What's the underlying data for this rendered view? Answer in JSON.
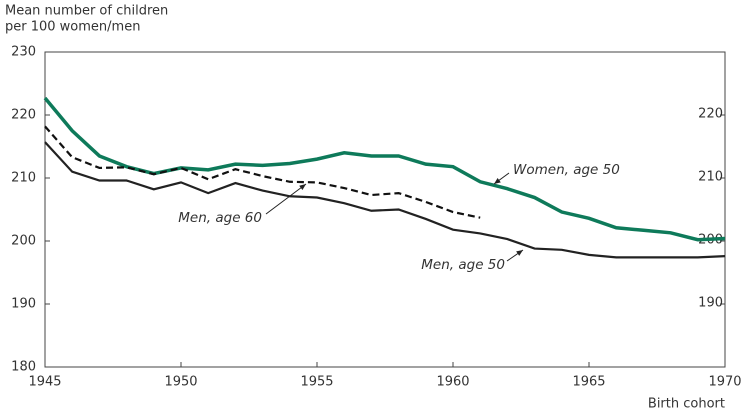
{
  "chart_data": {
    "type": "line",
    "y_label": [
      "Mean number of children",
      "per 100 women/men"
    ],
    "x_label": "Birth cohort",
    "x": [
      1945,
      1946,
      1947,
      1948,
      1949,
      1950,
      1951,
      1952,
      1953,
      1954,
      1955,
      1956,
      1957,
      1958,
      1959,
      1960,
      1961,
      1962,
      1963,
      1964,
      1965,
      1966,
      1967,
      1968,
      1969,
      1970
    ],
    "series": [
      {
        "name": "Women, age 50",
        "color": "#0e7a5a",
        "style": "solid",
        "values": [
          222.7,
          217.5,
          213.5,
          211.8,
          210.7,
          211.6,
          211.3,
          212.2,
          212.0,
          212.3,
          213.0,
          214.0,
          213.5,
          213.5,
          212.2,
          211.8,
          209.4,
          208.3,
          206.9,
          204.6,
          203.6,
          202.1,
          201.7,
          201.3,
          200.2,
          200.4
        ]
      },
      {
        "name": "Men, age 60",
        "color": "#111111",
        "style": "dashed",
        "values": [
          218.2,
          213.3,
          211.6,
          211.7,
          210.6,
          211.6,
          209.8,
          211.4,
          210.3,
          209.4,
          209.3,
          208.4,
          207.3,
          207.6,
          206.2,
          204.6,
          203.7,
          null,
          null,
          null,
          null,
          null,
          null,
          null,
          null,
          null
        ]
      },
      {
        "name": "Men, age 50",
        "color": "#222222",
        "style": "solid",
        "values": [
          215.7,
          211.0,
          209.6,
          209.6,
          208.2,
          209.3,
          207.6,
          209.2,
          208.0,
          207.1,
          206.9,
          206.0,
          204.8,
          205.0,
          203.5,
          201.8,
          201.2,
          200.3,
          198.8,
          198.6,
          197.8,
          197.4,
          197.4,
          197.4,
          197.4,
          197.6
        ]
      }
    ],
    "xlim": [
      1945,
      1970
    ],
    "xticks": [
      1945,
      1950,
      1955,
      1960,
      1965,
      1970
    ],
    "ylim": [
      180,
      230
    ],
    "yticks": [
      180,
      190,
      200,
      210,
      220,
      230
    ],
    "grid": false
  }
}
